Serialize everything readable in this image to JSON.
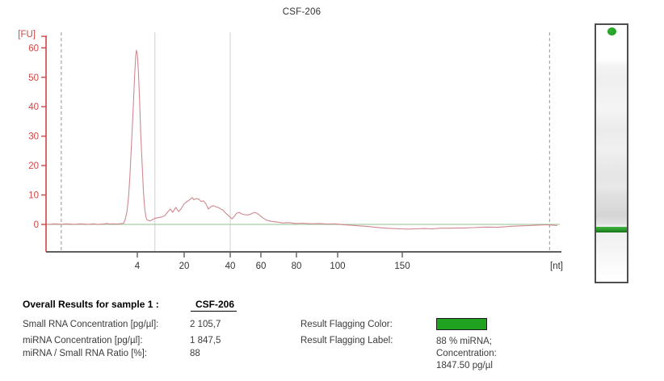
{
  "title": "CSF-206",
  "chart_data": {
    "type": "line",
    "title": "CSF-206",
    "x_axis": {
      "label": "[nt]",
      "ticks": [
        4,
        20,
        40,
        60,
        80,
        100,
        150
      ],
      "scale": "nonlinear-migration"
    },
    "y_axis": {
      "label": "[FU]",
      "ticks": [
        0,
        10,
        20,
        30,
        40,
        50,
        60
      ],
      "ylim": [
        -9,
        65
      ]
    },
    "nt_to_frac_anchors": [
      [
        1,
        0
      ],
      [
        4,
        0.1785
      ],
      [
        20,
        0.2701
      ],
      [
        40,
        0.3602
      ],
      [
        60,
        0.4202
      ],
      [
        80,
        0.4897
      ],
      [
        100,
        0.5703
      ],
      [
        150,
        0.6967
      ],
      [
        270,
        1.0
      ]
    ],
    "marker_lines_nt": [
      1.5,
      264
    ],
    "region_boundary_lines_nt": [
      10,
      40
    ],
    "zero_baseline_fu": 0,
    "grid": "off",
    "legend": "none",
    "series": [
      {
        "name": "CSF-206 electropherogram",
        "color": "#d08890",
        "points": [
          [
            1.0,
            0.1
          ],
          [
            1.1,
            0.0
          ],
          [
            1.25,
            0.2
          ],
          [
            1.4,
            0.1
          ],
          [
            1.5,
            0.0
          ],
          [
            1.65,
            0.2
          ],
          [
            1.8,
            0.1
          ],
          [
            1.95,
            0.0
          ],
          [
            2.1,
            0.2
          ],
          [
            2.25,
            0.1
          ],
          [
            2.4,
            0.0
          ],
          [
            2.55,
            0.2
          ],
          [
            2.7,
            0.0
          ],
          [
            2.85,
            0.1
          ],
          [
            3.0,
            0.3
          ],
          [
            3.1,
            0.1
          ],
          [
            3.2,
            0.2
          ],
          [
            3.35,
            0.1
          ],
          [
            3.5,
            0.3
          ],
          [
            3.56,
            0.5
          ],
          [
            3.6,
            1.6
          ],
          [
            3.66,
            4.4
          ],
          [
            3.71,
            9.1
          ],
          [
            3.76,
            17.3
          ],
          [
            3.81,
            27.4
          ],
          [
            3.87,
            40.6
          ],
          [
            3.91,
            50.2
          ],
          [
            3.95,
            57.6
          ],
          [
            3.97,
            59.2
          ],
          [
            4.0,
            57.9
          ],
          [
            4.4,
            51.6
          ],
          [
            4.8,
            41.4
          ],
          [
            5.2,
            30.2
          ],
          [
            5.7,
            19.2
          ],
          [
            6.1,
            11.0
          ],
          [
            6.5,
            5.5
          ],
          [
            6.9,
            2.7
          ],
          [
            7.3,
            1.6
          ],
          [
            7.9,
            1.3
          ],
          [
            8.4,
            1.2
          ],
          [
            9.0,
            1.5
          ],
          [
            9.5,
            1.8
          ],
          [
            10.3,
            2.1
          ],
          [
            11.2,
            2.3
          ],
          [
            12.3,
            2.5
          ],
          [
            13.4,
            3.0
          ],
          [
            14.5,
            4.4
          ],
          [
            15.3,
            5.2
          ],
          [
            16.1,
            4.1
          ],
          [
            17.2,
            5.8
          ],
          [
            18.1,
            4.4
          ],
          [
            18.9,
            5.2
          ],
          [
            20.0,
            7.0
          ],
          [
            21.1,
            7.7
          ],
          [
            22.1,
            8.2
          ],
          [
            23.5,
            9.1
          ],
          [
            24.2,
            8.4
          ],
          [
            25.3,
            8.8
          ],
          [
            26.3,
            8.6
          ],
          [
            27.4,
            7.8
          ],
          [
            28.4,
            8.0
          ],
          [
            29.5,
            6.9
          ],
          [
            30.5,
            5.2
          ],
          [
            31.6,
            6.0
          ],
          [
            32.6,
            6.4
          ],
          [
            33.7,
            6.0
          ],
          [
            34.7,
            5.8
          ],
          [
            35.8,
            5.3
          ],
          [
            36.8,
            4.9
          ],
          [
            38.2,
            3.7
          ],
          [
            39.6,
            2.7
          ],
          [
            41.1,
            1.9
          ],
          [
            42.6,
            2.7
          ],
          [
            44.2,
            3.8
          ],
          [
            45.8,
            4.1
          ],
          [
            47.4,
            3.6
          ],
          [
            49.5,
            3.3
          ],
          [
            51.6,
            3.2
          ],
          [
            53.7,
            3.6
          ],
          [
            55.8,
            4.1
          ],
          [
            57.4,
            3.8
          ],
          [
            58.9,
            3.2
          ],
          [
            60.9,
            2.3
          ],
          [
            62.7,
            1.6
          ],
          [
            64.5,
            1.2
          ],
          [
            66.8,
            1.0
          ],
          [
            69.1,
            0.8
          ],
          [
            72.3,
            0.5
          ],
          [
            75.9,
            0.6
          ],
          [
            79.5,
            0.3
          ],
          [
            83.1,
            0.4
          ],
          [
            87.1,
            0.2
          ],
          [
            91.0,
            0.3
          ],
          [
            94.9,
            0.1
          ],
          [
            98.8,
            0.2
          ],
          [
            104.4,
            -0.1
          ],
          [
            110.6,
            -0.3
          ],
          [
            116.9,
            -0.5
          ],
          [
            123.1,
            -0.7
          ],
          [
            129.4,
            -1.0
          ],
          [
            135.6,
            -1.2
          ],
          [
            141.9,
            -1.4
          ],
          [
            148.1,
            -1.5
          ],
          [
            154.4,
            -1.6
          ],
          [
            160.6,
            -1.5
          ],
          [
            166.9,
            -1.4
          ],
          [
            173.1,
            -1.5
          ],
          [
            179.4,
            -1.3
          ],
          [
            185.6,
            -1.3
          ],
          [
            191.9,
            -1.2
          ],
          [
            198.1,
            -1.2
          ],
          [
            204.4,
            -1.1
          ],
          [
            210.6,
            -1.0
          ],
          [
            216.9,
            -0.9
          ],
          [
            223.1,
            -1.0
          ],
          [
            229.4,
            -0.8
          ],
          [
            235.6,
            -0.6
          ],
          [
            241.9,
            -0.5
          ],
          [
            248.1,
            -0.4
          ],
          [
            253.1,
            -0.3
          ],
          [
            257.5,
            -0.2
          ],
          [
            261.3,
            -0.1
          ],
          [
            264.4,
            -0.2
          ],
          [
            267.5,
            -0.3
          ],
          [
            270.0,
            -0.4
          ]
        ]
      }
    ],
    "colors": {
      "y_axis": "#cf4747",
      "x_axis": "#5f5f5f",
      "zero_line": "#a8cda8",
      "marker_dashed_line": "#9fae9f",
      "region_line": "#d8d8d8",
      "trace": "#d08890"
    }
  },
  "gel": {
    "dot_color": "#2fae2f",
    "band_color_top": "#40b340",
    "band_color_bottom": "#156f15"
  },
  "results": {
    "heading": "Overall Results for sample 1 :",
    "sample_name": "CSF-206",
    "rows": [
      {
        "label": "Small RNA Concentration [pg/µl]:",
        "value": "2 105,7"
      },
      {
        "label": "miRNA Concentration [pg/µl]:",
        "value": "1 847,5"
      },
      {
        "label": "miRNA / Small RNA Ratio [%]:",
        "value": "88"
      }
    ],
    "flagging": {
      "color_label": "Result Flagging Color:",
      "color_value": "#1fa21f",
      "label_label": "Result Flagging Label:",
      "label_value_lines": [
        "88 % miRNA;",
        "Concentration:",
        "1847.50 pg/µl"
      ]
    }
  }
}
